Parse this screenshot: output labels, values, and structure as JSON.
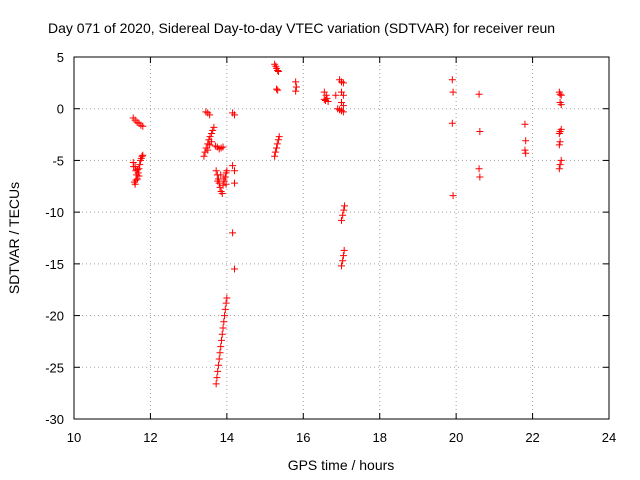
{
  "chart_data": {
    "type": "scatter",
    "title": "Day 071 of 2020, Sidereal Day-to-day VTEC variation (SDTVAR) for receiver reun",
    "xlabel": "GPS time / hours",
    "ylabel": "SDTVAR / TECUs",
    "xlim": [
      10,
      24
    ],
    "ylim": [
      -30,
      5
    ],
    "xticks": [
      10,
      12,
      14,
      16,
      18,
      20,
      22,
      24
    ],
    "yticks": [
      -30,
      -25,
      -20,
      -15,
      -10,
      -5,
      0,
      5
    ],
    "grid": true,
    "marker": "+",
    "color": "#ff0000",
    "series": [
      {
        "name": "SDTVAR",
        "points": [
          [
            11.55,
            -0.9
          ],
          [
            11.6,
            -1.1
          ],
          [
            11.65,
            -1.3
          ],
          [
            11.7,
            -1.4
          ],
          [
            11.75,
            -1.6
          ],
          [
            11.8,
            -1.7
          ],
          [
            11.55,
            -5.2
          ],
          [
            11.6,
            -5.6
          ],
          [
            11.62,
            -6.0
          ],
          [
            11.64,
            -6.4
          ],
          [
            11.66,
            -6.8
          ],
          [
            11.58,
            -7.1
          ],
          [
            11.6,
            -7.3
          ],
          [
            11.68,
            -6.2
          ],
          [
            11.7,
            -5.8
          ],
          [
            11.72,
            -5.4
          ],
          [
            11.74,
            -5.0
          ],
          [
            11.76,
            -4.8
          ],
          [
            11.78,
            -4.6
          ],
          [
            11.8,
            -4.5
          ],
          [
            11.66,
            -5.9
          ],
          [
            11.7,
            -6.5
          ],
          [
            11.62,
            -6.9
          ],
          [
            11.56,
            -5.6
          ],
          [
            13.45,
            -0.3
          ],
          [
            13.5,
            -0.4
          ],
          [
            13.55,
            -0.6
          ],
          [
            13.4,
            -4.6
          ],
          [
            13.43,
            -4.2
          ],
          [
            13.46,
            -3.8
          ],
          [
            13.5,
            -3.4
          ],
          [
            13.53,
            -3.0
          ],
          [
            13.56,
            -2.7
          ],
          [
            13.6,
            -2.4
          ],
          [
            13.63,
            -2.1
          ],
          [
            13.66,
            -1.8
          ],
          [
            13.5,
            -4.0
          ],
          [
            13.55,
            -3.5
          ],
          [
            13.6,
            -3.2
          ],
          [
            13.7,
            -3.6
          ],
          [
            13.75,
            -3.7
          ],
          [
            13.8,
            -3.9
          ],
          [
            13.85,
            -3.8
          ],
          [
            13.9,
            -3.7
          ],
          [
            13.72,
            -6.0
          ],
          [
            13.75,
            -6.4
          ],
          [
            13.78,
            -6.8
          ],
          [
            13.8,
            -7.2
          ],
          [
            13.82,
            -7.6
          ],
          [
            13.85,
            -8.0
          ],
          [
            13.88,
            -8.2
          ],
          [
            13.9,
            -7.4
          ],
          [
            13.93,
            -7.0
          ],
          [
            13.96,
            -6.6
          ],
          [
            13.98,
            -6.2
          ],
          [
            14.0,
            -6.0
          ],
          [
            13.76,
            -7.0
          ],
          [
            13.84,
            -6.4
          ],
          [
            13.92,
            -6.8
          ],
          [
            13.98,
            -7.3
          ],
          [
            14.15,
            -0.4
          ],
          [
            14.2,
            -0.6
          ],
          [
            14.15,
            -5.5
          ],
          [
            14.2,
            -6.0
          ],
          [
            14.2,
            -7.2
          ],
          [
            14.15,
            -12.0
          ],
          [
            14.2,
            -15.5
          ],
          [
            13.72,
            -26.6
          ],
          [
            13.74,
            -26.0
          ],
          [
            13.76,
            -25.4
          ],
          [
            13.78,
            -24.8
          ],
          [
            13.8,
            -24.2
          ],
          [
            13.82,
            -23.6
          ],
          [
            13.84,
            -23.0
          ],
          [
            13.86,
            -22.4
          ],
          [
            13.88,
            -21.8
          ],
          [
            13.9,
            -21.2
          ],
          [
            13.92,
            -20.6
          ],
          [
            13.94,
            -20.0
          ],
          [
            13.96,
            -19.4
          ],
          [
            13.98,
            -18.8
          ],
          [
            14.0,
            -18.3
          ],
          [
            15.25,
            4.3
          ],
          [
            15.28,
            4.1
          ],
          [
            15.3,
            3.9
          ],
          [
            15.33,
            3.7
          ],
          [
            15.35,
            3.6
          ],
          [
            15.3,
            1.9
          ],
          [
            15.33,
            1.8
          ],
          [
            15.25,
            -4.6
          ],
          [
            15.27,
            -4.2
          ],
          [
            15.3,
            -3.8
          ],
          [
            15.32,
            -3.4
          ],
          [
            15.35,
            -3.0
          ],
          [
            15.37,
            -2.7
          ],
          [
            15.8,
            2.6
          ],
          [
            15.82,
            2.1
          ],
          [
            15.8,
            1.7
          ],
          [
            16.55,
            1.6
          ],
          [
            16.6,
            1.3
          ],
          [
            16.62,
            1.0
          ],
          [
            16.58,
            0.8
          ],
          [
            16.65,
            0.7
          ],
          [
            16.55,
            0.9
          ],
          [
            16.85,
            1.3
          ],
          [
            16.9,
            0.0
          ],
          [
            16.95,
            -0.1
          ],
          [
            17.0,
            -0.2
          ],
          [
            17.05,
            -0.3
          ],
          [
            16.95,
            2.8
          ],
          [
            17.0,
            2.6
          ],
          [
            17.05,
            2.5
          ],
          [
            17.0,
            1.6
          ],
          [
            17.05,
            1.3
          ],
          [
            17.0,
            0.6
          ],
          [
            17.05,
            0.3
          ],
          [
            17.0,
            -10.8
          ],
          [
            17.03,
            -10.3
          ],
          [
            17.06,
            -9.8
          ],
          [
            17.08,
            -9.4
          ],
          [
            17.0,
            -15.2
          ],
          [
            17.03,
            -14.7
          ],
          [
            17.05,
            -14.2
          ],
          [
            17.07,
            -13.7
          ],
          [
            19.9,
            2.8
          ],
          [
            19.92,
            1.6
          ],
          [
            19.9,
            -1.4
          ],
          [
            19.92,
            -8.4
          ],
          [
            20.6,
            1.4
          ],
          [
            20.62,
            -2.2
          ],
          [
            20.6,
            -5.8
          ],
          [
            20.62,
            -6.6
          ],
          [
            21.8,
            -1.5
          ],
          [
            21.82,
            -3.1
          ],
          [
            21.8,
            -4.0
          ],
          [
            21.82,
            -4.3
          ],
          [
            22.7,
            1.6
          ],
          [
            22.72,
            1.4
          ],
          [
            22.75,
            1.3
          ],
          [
            22.72,
            0.6
          ],
          [
            22.75,
            0.4
          ],
          [
            22.7,
            -2.4
          ],
          [
            22.72,
            -2.2
          ],
          [
            22.75,
            -2.0
          ],
          [
            22.7,
            -3.5
          ],
          [
            22.72,
            -3.2
          ],
          [
            22.7,
            -5.8
          ],
          [
            22.72,
            -5.4
          ],
          [
            22.75,
            -5.0
          ]
        ]
      }
    ]
  }
}
